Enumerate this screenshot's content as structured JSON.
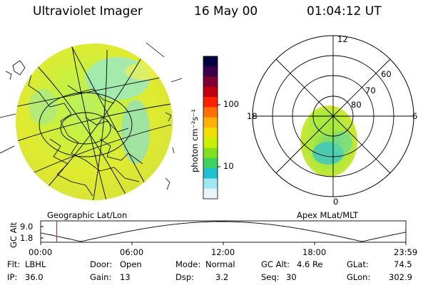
{
  "header": {
    "instrument": "Ultraviolet Imager",
    "date": "16 May 00",
    "time": "01:04:12 UT"
  },
  "left_panel": {
    "caption": "Geographic Lat/Lon"
  },
  "colorbar": {
    "unit_label": "photon cm⁻²s⁻¹",
    "ticks": [
      "100",
      "10"
    ],
    "colors": [
      "#000040",
      "#3a004a",
      "#800030",
      "#c00010",
      "#ff2000",
      "#ff7000",
      "#ffb000",
      "#f0e000",
      "#c8f000",
      "#80e020",
      "#40d060",
      "#20c0d0",
      "#a0e8f0",
      "#e8f4f8"
    ]
  },
  "right_panel": {
    "caption": "Apex MLat/MLT",
    "mlt_labels": {
      "top": "12",
      "left": "18",
      "right": "6",
      "bottom": "0"
    },
    "mlat_labels": [
      "60",
      "70",
      "80"
    ]
  },
  "timeline": {
    "ylabel": "GC Alt",
    "yticks": [
      "9.0",
      "1.8"
    ],
    "xticks": [
      "00:00",
      "06:00",
      "12:00",
      "18:00",
      "23:59"
    ],
    "marker_fraction": 0.044
  },
  "footer": {
    "row1": [
      {
        "key": "Flt:",
        "val": "LBHL"
      },
      {
        "key": "Door:",
        "val": "Open"
      },
      {
        "key": "Mode:",
        "val": "Normal"
      },
      {
        "key": "GC Alt:",
        "val": "4.6 Re"
      },
      {
        "key": "GLat:",
        "val": "74.5"
      }
    ],
    "row2": [
      {
        "key": "IP:",
        "val": "36.0"
      },
      {
        "key": "Gain:",
        "val": "13"
      },
      {
        "key": "Dsp:",
        "val": "3.2"
      },
      {
        "key": "Seq:",
        "val": "30"
      },
      {
        "key": "GLon:",
        "val": "302.9"
      }
    ]
  }
}
